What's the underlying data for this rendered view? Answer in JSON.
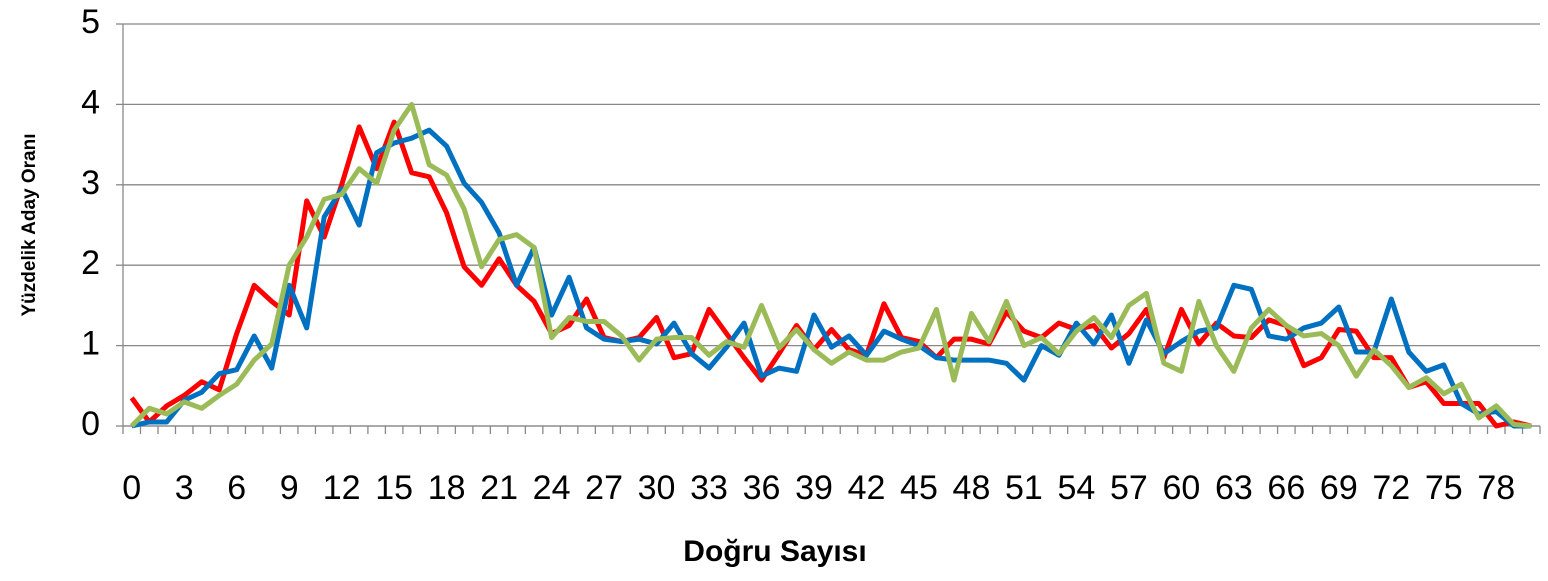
{
  "chart_data": {
    "type": "line",
    "x_label": "Doğru Sayısı",
    "y_label": "Yüzdelik Aday Oranı",
    "categories": [
      0,
      null,
      null,
      3,
      null,
      null,
      6,
      null,
      null,
      9,
      null,
      null,
      12,
      null,
      null,
      15,
      null,
      null,
      18,
      null,
      null,
      21,
      null,
      null,
      24,
      null,
      null,
      27,
      null,
      null,
      30,
      null,
      null,
      33,
      null,
      null,
      36,
      null,
      null,
      39,
      null,
      null,
      42,
      null,
      null,
      45,
      null,
      null,
      48,
      null,
      null,
      51,
      null,
      null,
      54,
      null,
      null,
      57,
      null,
      null,
      60,
      null,
      null,
      63,
      null,
      null,
      66,
      null,
      null,
      69,
      null,
      null,
      72,
      null,
      null,
      75,
      null,
      null,
      78,
      null,
      null
    ],
    "series": [
      {
        "color": "#ff0000",
        "values": [
          0.35,
          0.05,
          0.25,
          0.38,
          0.55,
          0.45,
          1.15,
          1.75,
          1.55,
          1.38,
          2.8,
          2.35,
          3.0,
          3.72,
          3.2,
          3.78,
          3.15,
          3.1,
          2.65,
          1.98,
          1.75,
          2.08,
          1.75,
          1.55,
          1.15,
          1.25,
          1.58,
          1.1,
          1.05,
          1.1,
          1.35,
          0.85,
          0.9,
          1.45,
          1.15,
          0.85,
          0.57,
          0.9,
          1.25,
          0.95,
          1.2,
          0.95,
          0.88,
          1.52,
          1.1,
          1.05,
          0.85,
          1.08,
          1.08,
          1.02,
          1.42,
          1.18,
          1.1,
          1.28,
          1.2,
          1.25,
          0.97,
          1.15,
          1.45,
          0.85,
          1.45,
          1.02,
          1.28,
          1.12,
          1.1,
          1.32,
          1.25,
          0.75,
          0.85,
          1.2,
          1.18,
          0.85,
          0.85,
          0.48,
          0.55,
          0.28,
          0.28,
          0.28,
          0.0,
          0.05,
          0.0
        ]
      },
      {
        "color": "#0070c0",
        "values": [
          0,
          0.05,
          0.05,
          0.32,
          0.42,
          0.65,
          0.7,
          1.12,
          0.72,
          1.75,
          1.22,
          2.6,
          2.95,
          2.5,
          3.4,
          3.52,
          3.58,
          3.68,
          3.48,
          3.02,
          2.78,
          2.4,
          1.75,
          2.22,
          1.38,
          1.85,
          1.22,
          1.08,
          1.05,
          1.08,
          1.02,
          1.28,
          0.9,
          0.72,
          0.98,
          1.28,
          0.62,
          0.72,
          0.68,
          1.38,
          0.98,
          1.12,
          0.88,
          1.18,
          1.08,
          1.0,
          0.85,
          0.82,
          0.82,
          0.82,
          0.78,
          0.57,
          1.0,
          0.88,
          1.28,
          1.02,
          1.38,
          0.78,
          1.32,
          0.9,
          1.05,
          1.18,
          1.22,
          1.75,
          1.7,
          1.12,
          1.08,
          1.22,
          1.28,
          1.48,
          0.92,
          0.92,
          1.58,
          0.92,
          0.68,
          0.76,
          0.28,
          0.15,
          0.18,
          0.0,
          0.0
        ]
      },
      {
        "color": "#9bbb59",
        "values": [
          0,
          0.22,
          0.15,
          0.3,
          0.22,
          0.38,
          0.52,
          0.82,
          1.02,
          2.0,
          2.35,
          2.82,
          2.88,
          3.2,
          3.02,
          3.68,
          4.0,
          3.25,
          3.12,
          2.7,
          1.98,
          2.32,
          2.38,
          2.22,
          1.1,
          1.35,
          1.3,
          1.3,
          1.12,
          0.82,
          1.08,
          1.1,
          1.1,
          0.88,
          1.05,
          0.98,
          1.5,
          0.97,
          1.2,
          0.95,
          0.78,
          0.92,
          0.82,
          0.82,
          0.92,
          0.97,
          1.45,
          0.57,
          1.4,
          1.05,
          1.55,
          1.0,
          1.1,
          0.9,
          1.18,
          1.35,
          1.1,
          1.5,
          1.65,
          0.78,
          0.68,
          1.55,
          1.0,
          0.68,
          1.22,
          1.45,
          1.25,
          1.12,
          1.15,
          1.0,
          0.62,
          0.95,
          0.75,
          0.48,
          0.6,
          0.4,
          0.52,
          0.1,
          0.25,
          0.02,
          0.0
        ]
      }
    ],
    "ylim": [
      0,
      5
    ],
    "yticks": [
      0,
      1,
      2,
      3,
      4,
      5
    ],
    "grid": true
  }
}
